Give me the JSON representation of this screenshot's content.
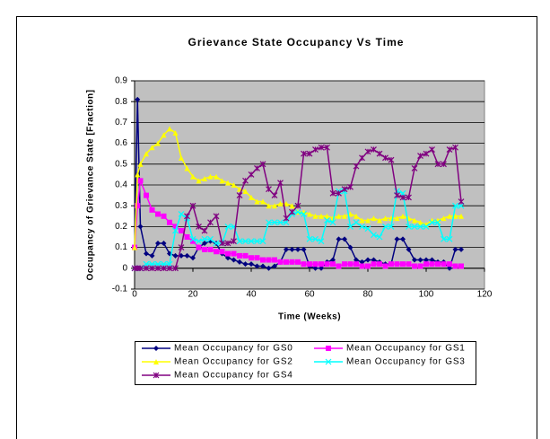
{
  "chart_data": {
    "type": "line",
    "title": "Grievance State Occupancy Vs Time",
    "x_label": "Time (Weeks)",
    "y_label": "Occupancy of Grievance State [Fraction]",
    "x": [
      0,
      1,
      2,
      4,
      6,
      8,
      10,
      12,
      14,
      16,
      18,
      20,
      22,
      24,
      26,
      28,
      30,
      32,
      34,
      36,
      38,
      40,
      42,
      44,
      46,
      48,
      50,
      52,
      54,
      56,
      58,
      60,
      62,
      64,
      66,
      68,
      70,
      72,
      74,
      76,
      78,
      80,
      82,
      84,
      86,
      88,
      90,
      92,
      94,
      96,
      98,
      100,
      102,
      104,
      106,
      108,
      110,
      112
    ],
    "series": [
      {
        "name": "Mean Occupancy for GS0",
        "color": "#000080",
        "marker": "diamond",
        "values": [
          0.1,
          0.81,
          0.2,
          0.07,
          0.06,
          0.12,
          0.12,
          0.07,
          0.06,
          0.06,
          0.06,
          0.05,
          0.1,
          0.12,
          0.13,
          0.12,
          0.07,
          0.05,
          0.04,
          0.03,
          0.02,
          0.02,
          0.01,
          0.01,
          0.0,
          0.01,
          0.03,
          0.09,
          0.09,
          0.09,
          0.09,
          0.01,
          0.0,
          0.0,
          0.03,
          0.04,
          0.14,
          0.14,
          0.1,
          0.04,
          0.03,
          0.04,
          0.04,
          0.03,
          0.02,
          0.02,
          0.14,
          0.14,
          0.09,
          0.04,
          0.04,
          0.04,
          0.04,
          0.03,
          0.03,
          0.0,
          0.09,
          0.09
        ]
      },
      {
        "name": "Mean Occupancy for GS1",
        "color": "#ff00ff",
        "marker": "square",
        "values": [
          0.1,
          0.3,
          0.42,
          0.35,
          0.28,
          0.26,
          0.25,
          0.22,
          0.2,
          0.18,
          0.15,
          0.13,
          0.1,
          0.09,
          0.09,
          0.08,
          0.08,
          0.07,
          0.07,
          0.06,
          0.06,
          0.05,
          0.05,
          0.04,
          0.04,
          0.04,
          0.03,
          0.03,
          0.03,
          0.03,
          0.02,
          0.02,
          0.02,
          0.02,
          0.02,
          0.02,
          0.01,
          0.02,
          0.02,
          0.02,
          0.01,
          0.01,
          0.02,
          0.02,
          0.01,
          0.02,
          0.02,
          0.02,
          0.02,
          0.01,
          0.01,
          0.02,
          0.02,
          0.02,
          0.02,
          0.02,
          0.01,
          0.01
        ]
      },
      {
        "name": "Mean Occupancy for GS2",
        "color": "#ffff00",
        "marker": "triangle",
        "values": [
          0.1,
          0.45,
          0.5,
          0.55,
          0.58,
          0.6,
          0.64,
          0.67,
          0.65,
          0.53,
          0.48,
          0.44,
          0.42,
          0.43,
          0.44,
          0.44,
          0.42,
          0.41,
          0.4,
          0.38,
          0.37,
          0.34,
          0.32,
          0.32,
          0.3,
          0.3,
          0.31,
          0.31,
          0.3,
          0.27,
          0.27,
          0.26,
          0.25,
          0.25,
          0.25,
          0.24,
          0.25,
          0.25,
          0.26,
          0.25,
          0.23,
          0.23,
          0.24,
          0.23,
          0.24,
          0.24,
          0.24,
          0.25,
          0.24,
          0.23,
          0.22,
          0.21,
          0.23,
          0.23,
          0.24,
          0.25,
          0.25,
          0.25
        ]
      },
      {
        "name": "Mean Occupancy for GS3",
        "color": "#00ffff",
        "marker": "x",
        "values": [
          0,
          0,
          0,
          0.02,
          0.02,
          0.02,
          0.02,
          0.02,
          0.18,
          0.26,
          0.24,
          0.14,
          0.13,
          0.14,
          0.14,
          0.12,
          0.12,
          0.2,
          0.2,
          0.13,
          0.13,
          0.13,
          0.13,
          0.13,
          0.22,
          0.22,
          0.22,
          0.22,
          0.26,
          0.27,
          0.26,
          0.14,
          0.14,
          0.13,
          0.23,
          0.22,
          0.37,
          0.37,
          0.2,
          0.22,
          0.2,
          0.19,
          0.16,
          0.15,
          0.2,
          0.2,
          0.37,
          0.36,
          0.2,
          0.2,
          0.2,
          0.2,
          0.22,
          0.22,
          0.14,
          0.14,
          0.3,
          0.3
        ]
      },
      {
        "name": "Mean Occupancy for GS4",
        "color": "#800080",
        "marker": "star",
        "values": [
          0,
          0,
          0,
          0,
          0,
          0,
          0,
          0,
          0,
          0.1,
          0.25,
          0.3,
          0.2,
          0.18,
          0.22,
          0.25,
          0.12,
          0.12,
          0.13,
          0.35,
          0.42,
          0.45,
          0.48,
          0.5,
          0.38,
          0.35,
          0.41,
          0.24,
          0.27,
          0.3,
          0.55,
          0.55,
          0.57,
          0.58,
          0.58,
          0.36,
          0.36,
          0.38,
          0.39,
          0.49,
          0.53,
          0.56,
          0.57,
          0.55,
          0.53,
          0.52,
          0.35,
          0.34,
          0.34,
          0.48,
          0.54,
          0.55,
          0.57,
          0.5,
          0.5,
          0.57,
          0.58,
          0.32
        ]
      }
    ],
    "xlim": [
      0,
      120
    ],
    "xticks": [
      0,
      20,
      40,
      60,
      80,
      100,
      120
    ],
    "ylim": [
      -0.1,
      0.9
    ],
    "yticks": [
      -0.1,
      0,
      0.1,
      0.2,
      0.3,
      0.4,
      0.5,
      0.6,
      0.7,
      0.8,
      0.9
    ],
    "grid": true,
    "plot_background": "#c0c0c0",
    "legend": "bottom"
  }
}
